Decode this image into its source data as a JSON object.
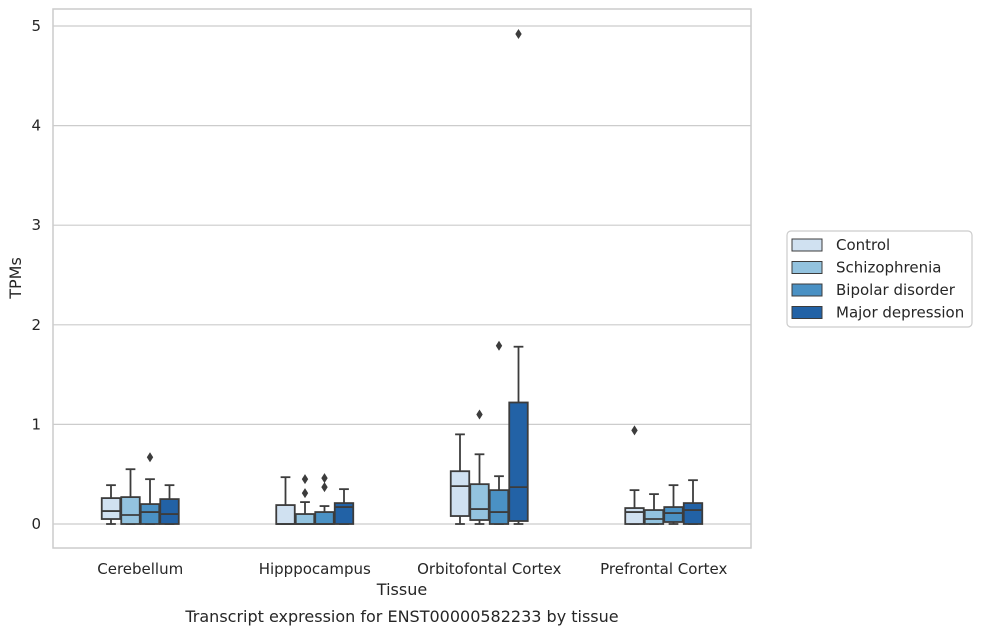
{
  "caption": "Transcript expression for ENST00000582233 by tissue",
  "colors": {
    "Control": "#d0e1f1",
    "Schizophrenia": "#93c3df",
    "Bipolar disorder": "#4a91c4",
    "Major depression": "#2262a6",
    "grid": "#cccccc",
    "box_line": "#3c3c3c"
  },
  "chart_data": {
    "type": "box",
    "title": "",
    "xlabel": "Tissue",
    "ylabel": "TPMs",
    "ylim": [
      -0.24,
      5.18
    ],
    "yticks": [
      0,
      1,
      2,
      3,
      4,
      5
    ],
    "grid": true,
    "legend_position": "right-center",
    "categories": [
      "Cerebellum",
      "Hipppocampus",
      "Orbitofontal Cortex",
      "Prefrontal Cortex"
    ],
    "series": [
      {
        "name": "Control",
        "boxes": [
          {
            "whislo": 0.0,
            "q1": 0.05,
            "med": 0.13,
            "q3": 0.26,
            "whishi": 0.39,
            "fliers": []
          },
          {
            "whislo": 0.0,
            "q1": 0.0,
            "med": 0.0,
            "q3": 0.19,
            "whishi": 0.47,
            "fliers": []
          },
          {
            "whislo": 0.0,
            "q1": 0.08,
            "med": 0.38,
            "q3": 0.53,
            "whishi": 0.9,
            "fliers": []
          },
          {
            "whislo": 0.0,
            "q1": 0.0,
            "med": 0.12,
            "q3": 0.16,
            "whishi": 0.34,
            "fliers": [
              0.94
            ]
          }
        ]
      },
      {
        "name": "Schizophrenia",
        "boxes": [
          {
            "whislo": 0.0,
            "q1": 0.0,
            "med": 0.09,
            "q3": 0.27,
            "whishi": 0.55,
            "fliers": []
          },
          {
            "whislo": 0.0,
            "q1": 0.0,
            "med": 0.0,
            "q3": 0.1,
            "whishi": 0.22,
            "fliers": [
              0.31,
              0.45
            ]
          },
          {
            "whislo": 0.0,
            "q1": 0.04,
            "med": 0.15,
            "q3": 0.4,
            "whishi": 0.7,
            "fliers": [
              1.1
            ]
          },
          {
            "whislo": 0.0,
            "q1": 0.0,
            "med": 0.05,
            "q3": 0.14,
            "whishi": 0.3,
            "fliers": []
          }
        ]
      },
      {
        "name": "Bipolar disorder",
        "boxes": [
          {
            "whislo": 0.0,
            "q1": 0.0,
            "med": 0.12,
            "q3": 0.2,
            "whishi": 0.45,
            "fliers": [
              0.67
            ]
          },
          {
            "whislo": 0.0,
            "q1": 0.0,
            "med": 0.0,
            "q3": 0.12,
            "whishi": 0.18,
            "fliers": [
              0.37,
              0.46
            ]
          },
          {
            "whislo": 0.0,
            "q1": 0.0,
            "med": 0.12,
            "q3": 0.34,
            "whishi": 0.48,
            "fliers": [
              1.79
            ]
          },
          {
            "whislo": 0.0,
            "q1": 0.02,
            "med": 0.11,
            "q3": 0.17,
            "whishi": 0.39,
            "fliers": []
          }
        ]
      },
      {
        "name": "Major depression",
        "boxes": [
          {
            "whislo": 0.0,
            "q1": 0.0,
            "med": 0.1,
            "q3": 0.25,
            "whishi": 0.39,
            "fliers": []
          },
          {
            "whislo": 0.0,
            "q1": 0.0,
            "med": 0.17,
            "q3": 0.21,
            "whishi": 0.35,
            "fliers": []
          },
          {
            "whislo": 0.0,
            "q1": 0.03,
            "med": 0.37,
            "q3": 1.22,
            "whishi": 1.78,
            "fliers": [
              4.92
            ]
          },
          {
            "whislo": 0.0,
            "q1": 0.0,
            "med": 0.14,
            "q3": 0.21,
            "whishi": 0.44,
            "fliers": []
          }
        ]
      }
    ]
  }
}
